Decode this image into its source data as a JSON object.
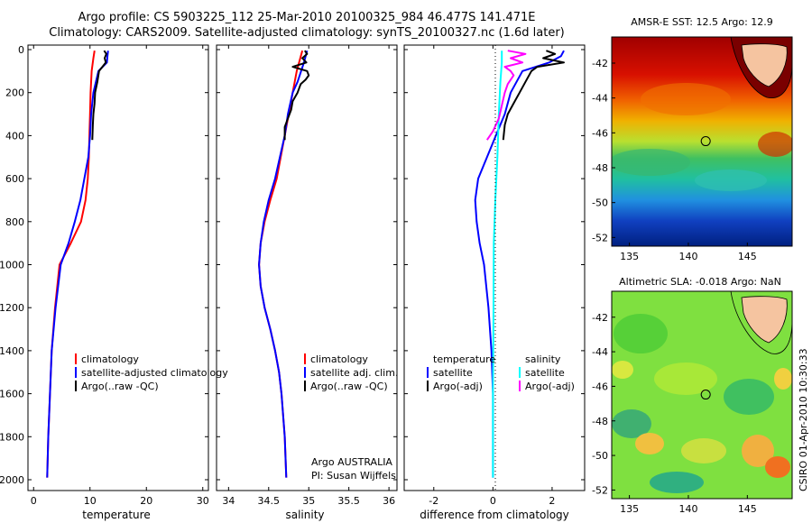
{
  "header": {
    "line1": "Argo profile: CS 5903225_112 25-Mar-2010 20100325_984 46.477S 141.471E",
    "line2": "Climatology: CARS2009. Satellite-adjusted climatology: synTS_20100327.nc (1.6d later)"
  },
  "colors": {
    "climatology": "#ff0000",
    "satellite": "#0000ff",
    "argo": "#000000",
    "salinity_satellite": "#00ffff",
    "salinity_argo": "#ff00ff"
  },
  "depth_ticks": [
    "0",
    "200",
    "400",
    "600",
    "800",
    "1000",
    "1200",
    "1400",
    "1600",
    "1800",
    "2000"
  ],
  "chart_data": [
    {
      "type": "line",
      "xlabel": "temperature",
      "xlim": [
        -1,
        31
      ],
      "ylim": [
        2050,
        0
      ],
      "x_ticks": [
        "0",
        "10",
        "20",
        "30"
      ],
      "legend": [
        "climatology",
        "satellite-adjusted climatology",
        "Argo(..raw -QC)"
      ],
      "series": [
        {
          "name": "climatology",
          "color": "red",
          "points": [
            [
              10.8,
              5
            ],
            [
              10.6,
              40
            ],
            [
              10.3,
              100
            ],
            [
              10.1,
              200
            ],
            [
              10.0,
              300
            ],
            [
              9.9,
              400
            ],
            [
              9.8,
              500
            ],
            [
              9.6,
              600
            ],
            [
              9.2,
              700
            ],
            [
              8.4,
              800
            ],
            [
              6.6,
              900
            ],
            [
              4.6,
              1000
            ],
            [
              3.8,
              1200
            ],
            [
              3.2,
              1400
            ],
            [
              2.9,
              1600
            ],
            [
              2.6,
              1800
            ],
            [
              2.4,
              1990
            ]
          ]
        },
        {
          "name": "satellite-adjusted climatology",
          "color": "blue",
          "points": [
            [
              13.2,
              5
            ],
            [
              13.1,
              30
            ],
            [
              13.0,
              60
            ],
            [
              11.5,
              100
            ],
            [
              10.6,
              200
            ],
            [
              10.2,
              300
            ],
            [
              10.0,
              400
            ],
            [
              9.7,
              500
            ],
            [
              9.0,
              600
            ],
            [
              8.3,
              700
            ],
            [
              7.3,
              800
            ],
            [
              6.2,
              900
            ],
            [
              4.8,
              1000
            ],
            [
              3.9,
              1200
            ],
            [
              3.2,
              1400
            ],
            [
              2.9,
              1600
            ],
            [
              2.6,
              1800
            ],
            [
              2.4,
              1990
            ]
          ]
        },
        {
          "name": "Argo(..raw -QC)",
          "color": "black",
          "points": [
            [
              12.5,
              5
            ],
            [
              12.9,
              20
            ],
            [
              12.6,
              40
            ],
            [
              12.8,
              60
            ],
            [
              12.2,
              80
            ],
            [
              11.6,
              100
            ],
            [
              11.3,
              150
            ],
            [
              10.9,
              200
            ],
            [
              10.8,
              250
            ],
            [
              10.6,
              300
            ],
            [
              10.5,
              350
            ],
            [
              10.4,
              420
            ]
          ]
        }
      ]
    },
    {
      "type": "line",
      "xlabel": "salinity",
      "xlim": [
        33.85,
        36.1
      ],
      "ylim": [
        2050,
        0
      ],
      "x_ticks": [
        "34",
        "34.5",
        "35",
        "35.5",
        "36"
      ],
      "legend": [
        "climatology",
        "satellite adj. clim.",
        "Argo(..raw -QC)"
      ],
      "annotations": [
        "Argo AUSTRALIA",
        "PI: Susan Wijffels"
      ],
      "series": [
        {
          "name": "climatology",
          "color": "red",
          "points": [
            [
              34.92,
              5
            ],
            [
              34.85,
              100
            ],
            [
              34.8,
              200
            ],
            [
              34.75,
              300
            ],
            [
              34.7,
              400
            ],
            [
              34.65,
              500
            ],
            [
              34.6,
              600
            ],
            [
              34.52,
              700
            ],
            [
              34.45,
              800
            ],
            [
              34.4,
              900
            ],
            [
              34.38,
              1000
            ],
            [
              34.4,
              1100
            ],
            [
              34.45,
              1200
            ],
            [
              34.52,
              1300
            ],
            [
              34.58,
              1400
            ],
            [
              34.63,
              1500
            ],
            [
              34.66,
              1600
            ],
            [
              34.68,
              1700
            ],
            [
              34.7,
              1800
            ],
            [
              34.72,
              1990
            ]
          ]
        },
        {
          "name": "satellite adj. clim.",
          "color": "blue",
          "points": [
            [
              34.98,
              5
            ],
            [
              34.94,
              60
            ],
            [
              34.86,
              150
            ],
            [
              34.8,
              200
            ],
            [
              34.74,
              300
            ],
            [
              34.7,
              400
            ],
            [
              34.64,
              500
            ],
            [
              34.58,
              600
            ],
            [
              34.5,
              700
            ],
            [
              34.44,
              800
            ],
            [
              34.4,
              900
            ],
            [
              34.38,
              1000
            ],
            [
              34.4,
              1100
            ],
            [
              34.45,
              1200
            ],
            [
              34.52,
              1300
            ],
            [
              34.58,
              1400
            ],
            [
              34.63,
              1500
            ],
            [
              34.66,
              1600
            ],
            [
              34.68,
              1700
            ],
            [
              34.7,
              1800
            ],
            [
              34.72,
              1990
            ]
          ]
        },
        {
          "name": "Argo(..raw -QC)",
          "color": "black",
          "points": [
            [
              34.95,
              5
            ],
            [
              34.98,
              20
            ],
            [
              34.92,
              40
            ],
            [
              34.97,
              60
            ],
            [
              34.8,
              80
            ],
            [
              34.98,
              100
            ],
            [
              35.0,
              120
            ],
            [
              34.96,
              140
            ],
            [
              34.9,
              160
            ],
            [
              34.86,
              200
            ],
            [
              34.8,
              240
            ],
            [
              34.78,
              280
            ],
            [
              34.74,
              320
            ],
            [
              34.7,
              360
            ],
            [
              34.7,
              420
            ]
          ]
        }
      ]
    },
    {
      "type": "line",
      "xlabel": "difference from climatology",
      "xlim": [
        -3,
        3.1
      ],
      "ylim": [
        2050,
        0
      ],
      "x_ticks": [
        "-2",
        "0",
        "2"
      ],
      "legend": [
        "temperature",
        "satellite",
        "Argo(-adj)",
        "salinity",
        "satellite",
        "Argo(-adj)"
      ],
      "series": [
        {
          "name": "satellite",
          "group": "temperature",
          "color": "blue",
          "points": [
            [
              2.4,
              5
            ],
            [
              2.3,
              30
            ],
            [
              1.9,
              60
            ],
            [
              1.0,
              100
            ],
            [
              0.6,
              200
            ],
            [
              0.4,
              300
            ],
            [
              0.1,
              400
            ],
            [
              -0.2,
              500
            ],
            [
              -0.5,
              600
            ],
            [
              -0.6,
              700
            ],
            [
              -0.55,
              800
            ],
            [
              -0.45,
              900
            ],
            [
              -0.3,
              1000
            ],
            [
              -0.15,
              1200
            ],
            [
              -0.05,
              1400
            ],
            [
              0,
              1600
            ],
            [
              0,
              1990
            ]
          ]
        },
        {
          "name": "Argo(-adj)",
          "group": "temperature",
          "color": "black",
          "points": [
            [
              1.8,
              5
            ],
            [
              2.1,
              20
            ],
            [
              1.7,
              40
            ],
            [
              2.4,
              60
            ],
            [
              1.5,
              80
            ],
            [
              1.3,
              100
            ],
            [
              1.1,
              150
            ],
            [
              0.9,
              200
            ],
            [
              0.7,
              250
            ],
            [
              0.5,
              300
            ],
            [
              0.4,
              350
            ],
            [
              0.35,
              420
            ]
          ]
        },
        {
          "name": "satellite",
          "group": "salinity",
          "color": "cyan",
          "points": [
            [
              0.3,
              5
            ],
            [
              0.3,
              60
            ],
            [
              0.25,
              150
            ],
            [
              0.2,
              300
            ],
            [
              0.15,
              500
            ],
            [
              0.08,
              700
            ],
            [
              0.03,
              900
            ],
            [
              0.02,
              1200
            ],
            [
              0,
              1600
            ],
            [
              0,
              1990
            ]
          ]
        },
        {
          "name": "Argo(-adj)",
          "group": "salinity",
          "color": "magenta",
          "points": [
            [
              0.5,
              5
            ],
            [
              1.1,
              20
            ],
            [
              0.6,
              40
            ],
            [
              1.0,
              60
            ],
            [
              0.4,
              80
            ],
            [
              0.6,
              100
            ],
            [
              0.7,
              120
            ],
            [
              0.5,
              160
            ],
            [
              0.4,
              200
            ],
            [
              0.3,
              260
            ],
            [
              0.2,
              320
            ],
            [
              0.0,
              380
            ],
            [
              -0.2,
              420
            ]
          ]
        }
      ]
    },
    {
      "type": "heatmap",
      "title": "AMSR-E SST: 12.5 Argo: 12.9",
      "x_ticks": [
        "135",
        "140",
        "145"
      ],
      "y_ticks": [
        "-42",
        "-44",
        "-46",
        "-48",
        "-50",
        "-52"
      ],
      "xlim": [
        133.5,
        148.8
      ],
      "ylim": [
        -52.5,
        -40.5
      ],
      "marker": {
        "lon": 141.471,
        "lat": -46.477
      }
    },
    {
      "type": "heatmap",
      "title": "Altimetric SLA: -0.018 Argo: NaN",
      "x_ticks": [
        "135",
        "140",
        "145"
      ],
      "y_ticks": [
        "-42",
        "-44",
        "-46",
        "-48",
        "-50",
        "-52"
      ],
      "xlim": [
        133.5,
        148.8
      ],
      "ylim": [
        -52.5,
        -40.5
      ],
      "marker": {
        "lon": 141.471,
        "lat": -46.477
      }
    }
  ],
  "stamp": "CSIRO 01-Apr-2010 10:30:33"
}
